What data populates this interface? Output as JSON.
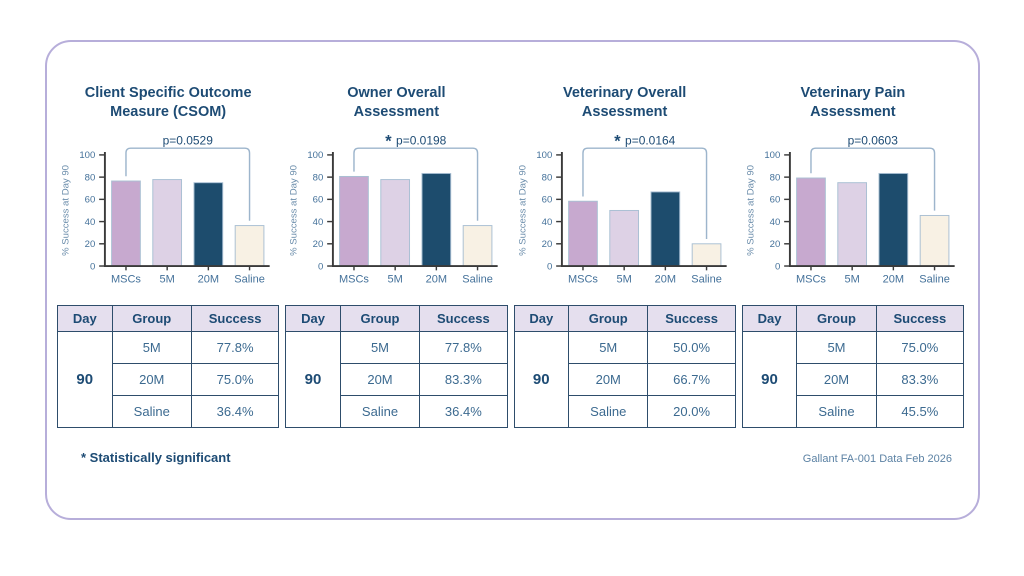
{
  "card": {
    "footnote": "* Statistically significant",
    "source": "Gallant FA-001 Data Feb 2026"
  },
  "colors": {
    "navy_text": "#1d4b74",
    "steel_text": "#44719a",
    "axis_label_text": "#6b8dab",
    "bracket": "#9db5cc",
    "axis_line": "#3a3a3a",
    "card_border": "#b7aeda",
    "table_border": "#2e4d6b",
    "table_header_bg": "#e5dfee",
    "bar_colors": [
      "#c7a9cf",
      "#ddd1e5",
      "#1d4c6d",
      "#f8f1e4"
    ],
    "bar_stroke": "#a9bfd3"
  },
  "chart_data": [
    {
      "type": "bar",
      "title": "Client Specific Outcome Measure (CSOM)",
      "title_lines": [
        "Client Specific Outcome",
        "Measure (CSOM)"
      ],
      "p_label": "p=0.0529",
      "significant": false,
      "categories": [
        "MSCs",
        "5M",
        "20M",
        "Saline"
      ],
      "values": [
        76.5,
        77.8,
        75.0,
        36.4
      ],
      "xlabel": "",
      "ylabel": "% Success at Day 90",
      "yticks": [
        0,
        20,
        40,
        60,
        80,
        100
      ],
      "ylim": [
        0,
        100
      ],
      "grid": false,
      "legend": "none"
    },
    {
      "type": "bar",
      "title": "Owner Overall Assessment",
      "title_lines": [
        "Owner Overall",
        "Assessment"
      ],
      "p_label": "p=0.0198",
      "significant": true,
      "categories": [
        "MSCs",
        "5M",
        "20M",
        "Saline"
      ],
      "values": [
        80.6,
        77.8,
        83.3,
        36.4
      ],
      "xlabel": "",
      "ylabel": "% Success at Day 90",
      "yticks": [
        0,
        20,
        40,
        60,
        80,
        100
      ],
      "ylim": [
        0,
        100
      ],
      "grid": false,
      "legend": "none"
    },
    {
      "type": "bar",
      "title": "Veterinary Overall Assessment",
      "title_lines": [
        "Veterinary Overall",
        "Assessment"
      ],
      "p_label": "p=0.0164",
      "significant": true,
      "categories": [
        "MSCs",
        "5M",
        "20M",
        "Saline"
      ],
      "values": [
        58.3,
        50.0,
        66.7,
        20.0
      ],
      "xlabel": "",
      "ylabel": "% Success at Day 90",
      "yticks": [
        0,
        20,
        40,
        60,
        80,
        100
      ],
      "ylim": [
        0,
        100
      ],
      "grid": false,
      "legend": "none"
    },
    {
      "type": "bar",
      "title": "Veterinary Pain Assessment",
      "title_lines": [
        "Veterinary Pain",
        "Assessment"
      ],
      "p_label": "p=0.0603",
      "significant": false,
      "categories": [
        "MSCs",
        "5M",
        "20M",
        "Saline"
      ],
      "values": [
        79.2,
        75.0,
        83.3,
        45.5
      ],
      "xlabel": "",
      "ylabel": "% Success at Day 90",
      "yticks": [
        0,
        20,
        40,
        60,
        80,
        100
      ],
      "ylim": [
        0,
        100
      ],
      "grid": false,
      "legend": "none"
    }
  ],
  "tables": [
    {
      "headers": [
        "Day",
        "Group",
        "Success"
      ],
      "day": "90",
      "rows": [
        [
          "5M",
          "77.8%"
        ],
        [
          "20M",
          "75.0%"
        ],
        [
          "Saline",
          "36.4%"
        ]
      ]
    },
    {
      "headers": [
        "Day",
        "Group",
        "Success"
      ],
      "day": "90",
      "rows": [
        [
          "5M",
          "77.8%"
        ],
        [
          "20M",
          "83.3%"
        ],
        [
          "Saline",
          "36.4%"
        ]
      ]
    },
    {
      "headers": [
        "Day",
        "Group",
        "Success"
      ],
      "day": "90",
      "rows": [
        [
          "5M",
          "50.0%"
        ],
        [
          "20M",
          "66.7%"
        ],
        [
          "Saline",
          "20.0%"
        ]
      ]
    },
    {
      "headers": [
        "Day",
        "Group",
        "Success"
      ],
      "day": "90",
      "rows": [
        [
          "5M",
          "75.0%"
        ],
        [
          "20M",
          "83.3%"
        ],
        [
          "Saline",
          "45.5%"
        ]
      ]
    }
  ]
}
